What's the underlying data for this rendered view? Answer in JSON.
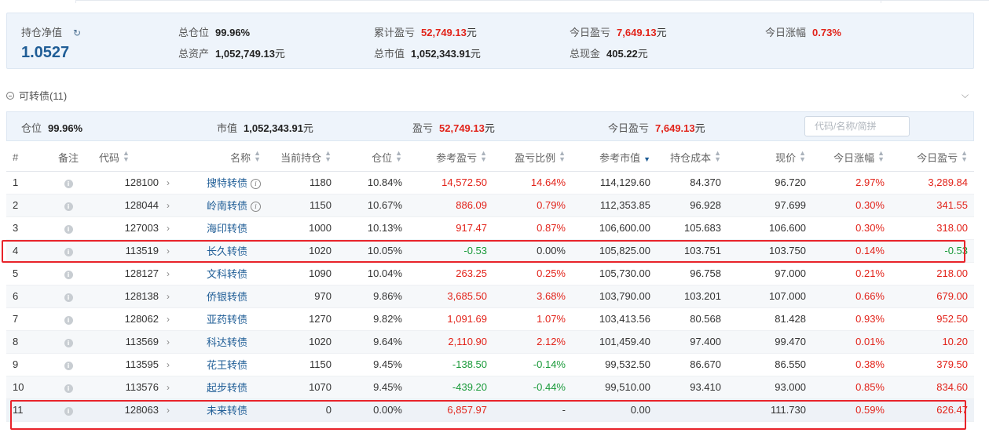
{
  "summary": {
    "nav_label": "持仓净值",
    "nav_value": "1.0527",
    "position_label": "总仓位",
    "position_value": "99.96%",
    "total_assets_label": "总资产",
    "total_assets_value": "1,052,749.13",
    "cum_pnl_label": "累计盈亏",
    "cum_pnl_value": "52,749.13",
    "market_value_label": "总市值",
    "market_value_value": "1,052,343.91",
    "today_pnl_label": "今日盈亏",
    "today_pnl_value": "7,649.13",
    "cash_label": "总现金",
    "cash_value": "405.22",
    "today_change_label": "今日涨幅",
    "today_change_value": "0.73%",
    "unit": "元"
  },
  "section": {
    "title": "可转债(11)"
  },
  "sub_summary": {
    "position_label": "仓位",
    "position_value": "99.96%",
    "market_value_label": "市值",
    "market_value_value": "1,052,343.91",
    "pnl_label": "盈亏",
    "pnl_value": "52,749.13",
    "today_pnl_label": "今日盈亏",
    "today_pnl_value": "7,649.13",
    "unit": "元",
    "search_placeholder": "代码/名称/简拼"
  },
  "table": {
    "headers": {
      "index": "#",
      "note": "备注",
      "code": "代码",
      "name": "名称",
      "holding": "当前持仓",
      "position": "仓位",
      "ref_pnl": "参考盈亏",
      "pnl_ratio": "盈亏比例",
      "ref_mv": "参考市值",
      "cost": "持仓成本",
      "price": "现价",
      "today_change": "今日涨幅",
      "today_pnl": "今日盈亏"
    },
    "rows": [
      {
        "index": "1",
        "code": "128100",
        "name": "搜特转债",
        "holding": "1180",
        "position": "10.84%",
        "ref_pnl": "14,572.50",
        "pnl_ratio": "14.64%",
        "ref_mv": "114,129.60",
        "cost": "84.370",
        "price": "96.720",
        "today_change": "2.97%",
        "today_pnl": "3,289.84"
      },
      {
        "index": "2",
        "code": "128044",
        "name": "岭南转债",
        "holding": "1150",
        "position": "10.67%",
        "ref_pnl": "886.09",
        "pnl_ratio": "0.79%",
        "ref_mv": "112,353.85",
        "cost": "96.928",
        "price": "97.699",
        "today_change": "0.30%",
        "today_pnl": "341.55"
      },
      {
        "index": "3",
        "code": "127003",
        "name": "海印转债",
        "holding": "1000",
        "position": "10.13%",
        "ref_pnl": "917.47",
        "pnl_ratio": "0.87%",
        "ref_mv": "106,600.00",
        "cost": "105.683",
        "price": "106.600",
        "today_change": "0.30%",
        "today_pnl": "318.00"
      },
      {
        "index": "4",
        "code": "113519",
        "name": "长久转债",
        "holding": "1020",
        "position": "10.05%",
        "ref_pnl": "-0.53",
        "pnl_ratio": "0.00%",
        "ref_mv": "105,825.00",
        "cost": "103.751",
        "price": "103.750",
        "today_change": "0.14%",
        "today_pnl": "-0.53"
      },
      {
        "index": "5",
        "code": "128127",
        "name": "文科转债",
        "holding": "1090",
        "position": "10.04%",
        "ref_pnl": "263.25",
        "pnl_ratio": "0.25%",
        "ref_mv": "105,730.00",
        "cost": "96.758",
        "price": "97.000",
        "today_change": "0.21%",
        "today_pnl": "218.00"
      },
      {
        "index": "6",
        "code": "128138",
        "name": "侨银转债",
        "holding": "970",
        "position": "9.86%",
        "ref_pnl": "3,685.50",
        "pnl_ratio": "3.68%",
        "ref_mv": "103,790.00",
        "cost": "103.201",
        "price": "107.000",
        "today_change": "0.66%",
        "today_pnl": "679.00"
      },
      {
        "index": "7",
        "code": "128062",
        "name": "亚药转债",
        "holding": "1270",
        "position": "9.82%",
        "ref_pnl": "1,091.69",
        "pnl_ratio": "1.07%",
        "ref_mv": "103,413.56",
        "cost": "80.568",
        "price": "81.428",
        "today_change": "0.93%",
        "today_pnl": "952.50"
      },
      {
        "index": "8",
        "code": "113569",
        "name": "科达转债",
        "holding": "1020",
        "position": "9.64%",
        "ref_pnl": "2,110.90",
        "pnl_ratio": "2.12%",
        "ref_mv": "101,459.40",
        "cost": "97.400",
        "price": "99.470",
        "today_change": "0.01%",
        "today_pnl": "10.20"
      },
      {
        "index": "9",
        "code": "113595",
        "name": "花王转债",
        "holding": "1150",
        "position": "9.45%",
        "ref_pnl": "-138.50",
        "pnl_ratio": "-0.14%",
        "ref_mv": "99,532.50",
        "cost": "86.670",
        "price": "86.550",
        "today_change": "0.38%",
        "today_pnl": "379.50"
      },
      {
        "index": "10",
        "code": "113576",
        "name": "起步转债",
        "holding": "1070",
        "position": "9.45%",
        "ref_pnl": "-439.20",
        "pnl_ratio": "-0.44%",
        "ref_mv": "99,510.00",
        "cost": "93.410",
        "price": "93.000",
        "today_change": "0.85%",
        "today_pnl": "834.60"
      },
      {
        "index": "11",
        "code": "128063",
        "name": "未来转债",
        "holding": "0",
        "position": "0.00%",
        "ref_pnl": "6,857.97",
        "pnl_ratio": "-",
        "ref_mv": "0.00",
        "cost": "",
        "price": "111.730",
        "today_change": "0.59%",
        "today_pnl": "626.47"
      }
    ]
  },
  "colors": {
    "positive": "#e2231a",
    "negative": "#1a9a3a",
    "highlight": "#e8232a",
    "accent": "#1f5d96"
  }
}
